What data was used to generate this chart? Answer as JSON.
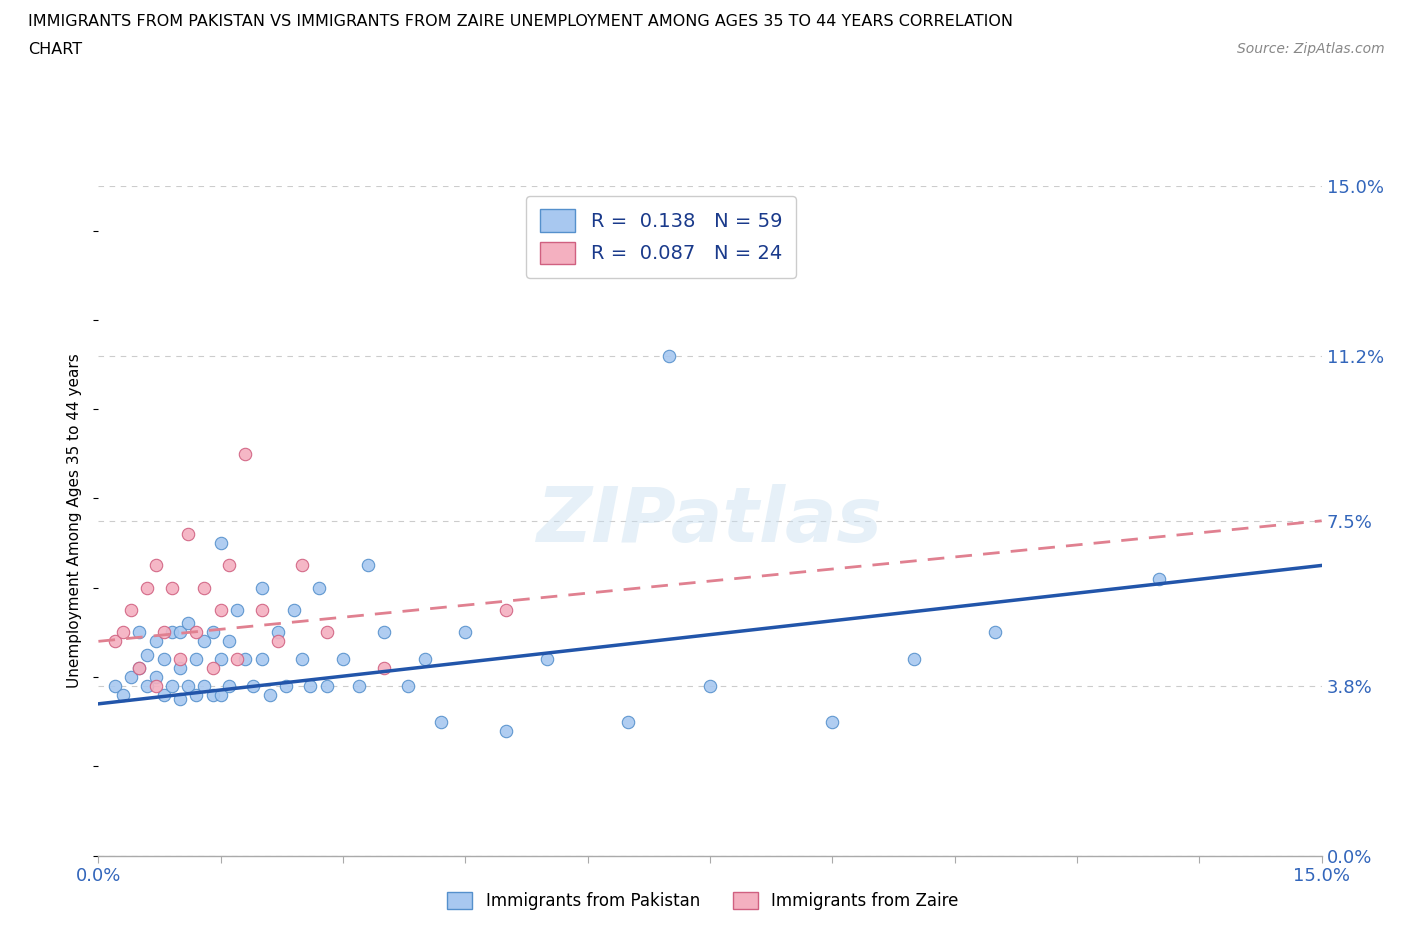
{
  "title_line1": "IMMIGRANTS FROM PAKISTAN VS IMMIGRANTS FROM ZAIRE UNEMPLOYMENT AMONG AGES 35 TO 44 YEARS CORRELATION",
  "title_line2": "CHART",
  "source": "Source: ZipAtlas.com",
  "ylabel": "Unemployment Among Ages 35 to 44 years",
  "xlim": [
    0.0,
    0.15
  ],
  "ylim": [
    0.0,
    0.15
  ],
  "xticks": [
    0.0,
    0.015,
    0.03,
    0.045,
    0.06,
    0.075,
    0.09,
    0.105,
    0.12,
    0.135,
    0.15
  ],
  "ytick_values": [
    0.0,
    0.038,
    0.075,
    0.112,
    0.15
  ],
  "ytick_labels": [
    "0.0%",
    "3.8%",
    "7.5%",
    "11.2%",
    "15.0%"
  ],
  "pakistan_color": "#a8c8f0",
  "pakistan_edge": "#5590cc",
  "zaire_color": "#f4b0c0",
  "zaire_edge": "#d06080",
  "trend_pakistan_color": "#2255aa",
  "trend_zaire_color": "#e08090",
  "pakistan_R": 0.138,
  "pakistan_N": 59,
  "zaire_R": 0.087,
  "zaire_N": 24,
  "watermark": "ZIPatlas",
  "legend_label_pakistan": "Immigrants from Pakistan",
  "legend_label_zaire": "Immigrants from Zaire",
  "pakistan_scatter_x": [
    0.002,
    0.003,
    0.004,
    0.005,
    0.005,
    0.006,
    0.006,
    0.007,
    0.007,
    0.008,
    0.008,
    0.009,
    0.009,
    0.01,
    0.01,
    0.01,
    0.011,
    0.011,
    0.012,
    0.012,
    0.013,
    0.013,
    0.014,
    0.014,
    0.015,
    0.015,
    0.015,
    0.016,
    0.016,
    0.017,
    0.018,
    0.019,
    0.02,
    0.02,
    0.021,
    0.022,
    0.023,
    0.024,
    0.025,
    0.026,
    0.027,
    0.028,
    0.03,
    0.032,
    0.033,
    0.035,
    0.038,
    0.04,
    0.042,
    0.045,
    0.05,
    0.055,
    0.065,
    0.07,
    0.075,
    0.09,
    0.1,
    0.11,
    0.13
  ],
  "pakistan_scatter_y": [
    0.038,
    0.036,
    0.04,
    0.042,
    0.05,
    0.038,
    0.045,
    0.04,
    0.048,
    0.036,
    0.044,
    0.038,
    0.05,
    0.035,
    0.042,
    0.05,
    0.038,
    0.052,
    0.036,
    0.044,
    0.038,
    0.048,
    0.036,
    0.05,
    0.036,
    0.044,
    0.07,
    0.038,
    0.048,
    0.055,
    0.044,
    0.038,
    0.044,
    0.06,
    0.036,
    0.05,
    0.038,
    0.055,
    0.044,
    0.038,
    0.06,
    0.038,
    0.044,
    0.038,
    0.065,
    0.05,
    0.038,
    0.044,
    0.03,
    0.05,
    0.028,
    0.044,
    0.03,
    0.112,
    0.038,
    0.03,
    0.044,
    0.05,
    0.062
  ],
  "zaire_scatter_x": [
    0.002,
    0.003,
    0.004,
    0.005,
    0.006,
    0.007,
    0.007,
    0.008,
    0.009,
    0.01,
    0.011,
    0.012,
    0.013,
    0.014,
    0.015,
    0.016,
    0.017,
    0.018,
    0.02,
    0.022,
    0.025,
    0.028,
    0.035,
    0.05
  ],
  "zaire_scatter_y": [
    0.048,
    0.05,
    0.055,
    0.042,
    0.06,
    0.038,
    0.065,
    0.05,
    0.06,
    0.044,
    0.072,
    0.05,
    0.06,
    0.042,
    0.055,
    0.065,
    0.044,
    0.09,
    0.055,
    0.048,
    0.065,
    0.05,
    0.042,
    0.055
  ],
  "trend_pk_x0": 0.0,
  "trend_pk_y0": 0.034,
  "trend_pk_x1": 0.15,
  "trend_pk_y1": 0.065,
  "trend_zr_x0": 0.0,
  "trend_zr_y0": 0.048,
  "trend_zr_x1": 0.15,
  "trend_zr_y1": 0.075
}
